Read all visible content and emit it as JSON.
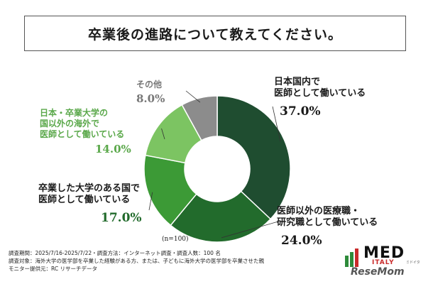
{
  "title": "卒業後の進路について教えてください。",
  "chart_data": {
    "type": "pie",
    "title": "卒業後の進路について教えてください。",
    "slices": [
      {
        "label": "日本国内で医師として働いている",
        "line1": "日本国内で",
        "line2": "医師として働いている",
        "value": 37.0,
        "pct_text": "37.0%",
        "color": "#1f4d30"
      },
      {
        "label": "医師以外の医療職・研究職として働いている",
        "line1": "医師以外の医療職・",
        "line2": "研究職として働いている",
        "value": 24.0,
        "pct_text": "24.0%",
        "color": "#226b2c"
      },
      {
        "label": "卒業した大学のある国で医師として働いている",
        "line1": "卒業した大学のある国で",
        "line2": "医師として働いている",
        "value": 17.0,
        "pct_text": "17.0%",
        "color": "#3c9a36"
      },
      {
        "label": "日本・卒業大学の国以外の海外で医師として働いている",
        "line1": "日本・卒業大学の",
        "line2": "国以外の海外で",
        "line3": "医師として働いている",
        "value": 14.0,
        "pct_text": "14.0%",
        "color": "#7cc462"
      },
      {
        "label": "その他",
        "line1": "その他",
        "value": 8.0,
        "pct_text": "8.0%",
        "color": "#8c8c8c"
      }
    ],
    "note": "(n=100)"
  },
  "footer": {
    "line1": "調査期間：2025/7/16-2025/7/22・調査方法：インターネット調査・調査人数：100 名",
    "line2": "調査対象：海外大学の医学部を卒業した経験がある方、または、子どもに海外大学の医学部を卒業させた親",
    "line3": "モニター提供元：RC リサーチデータ"
  },
  "logo": {
    "med": "MED",
    "italy": "ITALY",
    "kana": "ミドイタ",
    "resemom": "ReseMom"
  }
}
